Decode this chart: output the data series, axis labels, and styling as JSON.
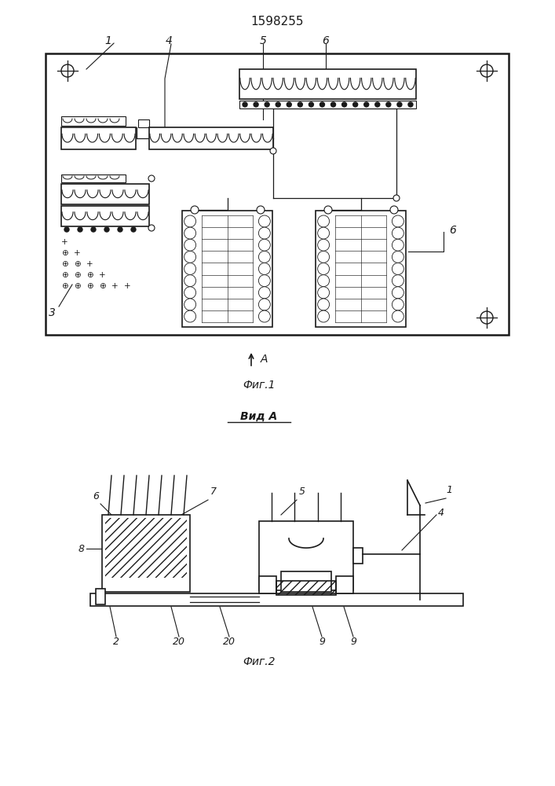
{
  "title": "1598255",
  "fig1_caption": "Фиг.1",
  "fig2_caption": "Фиг.2",
  "vid_a": "Вид A",
  "bg": "#ffffff",
  "lc": "#1a1a1a"
}
